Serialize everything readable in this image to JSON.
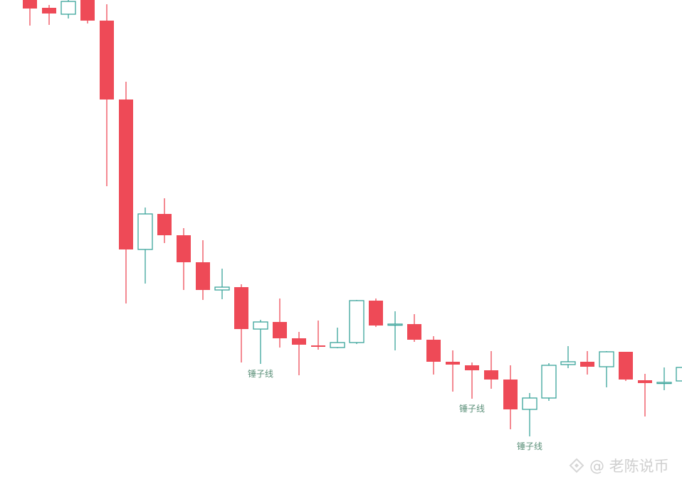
{
  "chart_data": {
    "type": "candlestick",
    "title": "",
    "xlabel": "",
    "ylabel": "",
    "grid": false,
    "colors": {
      "up": "#3aa39a",
      "down": "#ee4a57"
    },
    "ylim": [
      0,
      681
    ],
    "candles": [
      {
        "open": 681,
        "close": 669,
        "high": 681,
        "low": 645
      },
      {
        "open": 670,
        "close": 662,
        "high": 674,
        "low": 646
      },
      {
        "open": 661,
        "close": 679,
        "high": 681,
        "low": 655
      },
      {
        "open": 681,
        "close": 652,
        "high": 681,
        "low": 648
      },
      {
        "open": 652,
        "close": 541,
        "high": 675,
        "low": 419
      },
      {
        "open": 541,
        "close": 330,
        "high": 566,
        "low": 254
      },
      {
        "open": 330,
        "close": 380,
        "high": 389,
        "low": 282
      },
      {
        "open": 380,
        "close": 350,
        "high": 402,
        "low": 339
      },
      {
        "open": 350,
        "close": 312,
        "high": 360,
        "low": 273
      },
      {
        "open": 312,
        "close": 273,
        "high": 343,
        "low": 259
      },
      {
        "open": 273,
        "close": 277,
        "high": 303,
        "low": 260
      },
      {
        "open": 277,
        "close": 218,
        "high": 281,
        "low": 171
      },
      {
        "open": 218,
        "close": 228,
        "high": 231,
        "low": 169
      },
      {
        "open": 228,
        "close": 205,
        "high": 261,
        "low": 192
      },
      {
        "open": 205,
        "close": 196,
        "high": 214,
        "low": 153
      },
      {
        "open": 195,
        "close": 193,
        "high": 230,
        "low": 189
      },
      {
        "open": 192,
        "close": 199,
        "high": 220,
        "low": 191
      },
      {
        "open": 199,
        "close": 258,
        "high": 259,
        "low": 197
      },
      {
        "open": 258,
        "close": 223,
        "high": 261,
        "low": 221
      },
      {
        "open": 225,
        "close": 225,
        "high": 243,
        "low": 188
      },
      {
        "open": 225,
        "close": 203,
        "high": 239,
        "low": 200
      },
      {
        "open": 203,
        "close": 172,
        "high": 208,
        "low": 154
      },
      {
        "open": 172,
        "close": 168,
        "high": 188,
        "low": 130
      },
      {
        "open": 167,
        "close": 160,
        "high": 171,
        "low": 120
      },
      {
        "open": 160,
        "close": 147,
        "high": 187,
        "low": 134
      },
      {
        "open": 147,
        "close": 105,
        "high": 167,
        "low": 77
      },
      {
        "open": 105,
        "close": 121,
        "high": 128,
        "low": 67
      },
      {
        "open": 121,
        "close": 167,
        "high": 170,
        "low": 117
      },
      {
        "open": 168,
        "close": 172,
        "high": 194,
        "low": 163
      },
      {
        "open": 172,
        "close": 165,
        "high": 187,
        "low": 154
      },
      {
        "open": 165,
        "close": 186,
        "high": 187,
        "low": 136
      },
      {
        "open": 186,
        "close": 147,
        "high": 186,
        "low": 145
      },
      {
        "open": 146,
        "close": 142,
        "high": 155,
        "low": 95
      },
      {
        "open": 143,
        "close": 143,
        "high": 164,
        "low": 132
      },
      {
        "open": 145,
        "close": 164,
        "high": 166,
        "low": 141
      }
    ],
    "annotations": [
      {
        "text": "锤子线",
        "candle": 12
      },
      {
        "text": "锤子线",
        "candle": 23
      },
      {
        "text": "锤子线",
        "candle": 26
      }
    ]
  },
  "watermark": {
    "text": "@ 老陈说币",
    "icon": "binance-logo-icon"
  }
}
